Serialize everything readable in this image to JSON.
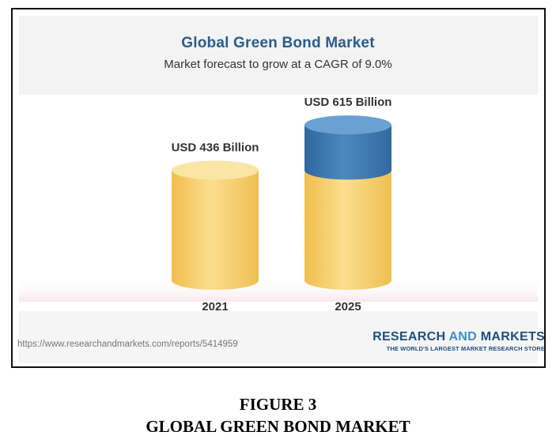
{
  "chart_data": {
    "type": "bar",
    "title": "Global Green Bond Market",
    "subtitle": "Market forecast to grow at a CAGR of 9.0%",
    "categories": [
      "2021",
      "2025"
    ],
    "values": [
      436,
      615
    ],
    "value_labels": [
      "USD 436 Billion",
      "USD 615 Billion"
    ],
    "unit": "USD Billion",
    "colors": {
      "base": "#f5cc63",
      "growth": "#3e76ad"
    }
  },
  "source": {
    "url": "https://www.researchandmarkets.com/reports/5414959"
  },
  "brand": {
    "name_part1": "RESEARCH ",
    "name_and": "AND",
    "name_part2": " MARKETS",
    "tagline": "THE WORLD'S LARGEST MARKET RESEARCH STORE"
  },
  "figure": {
    "number": "FIGURE 3",
    "caption": "GLOBAL GREEN BOND MARKET"
  }
}
